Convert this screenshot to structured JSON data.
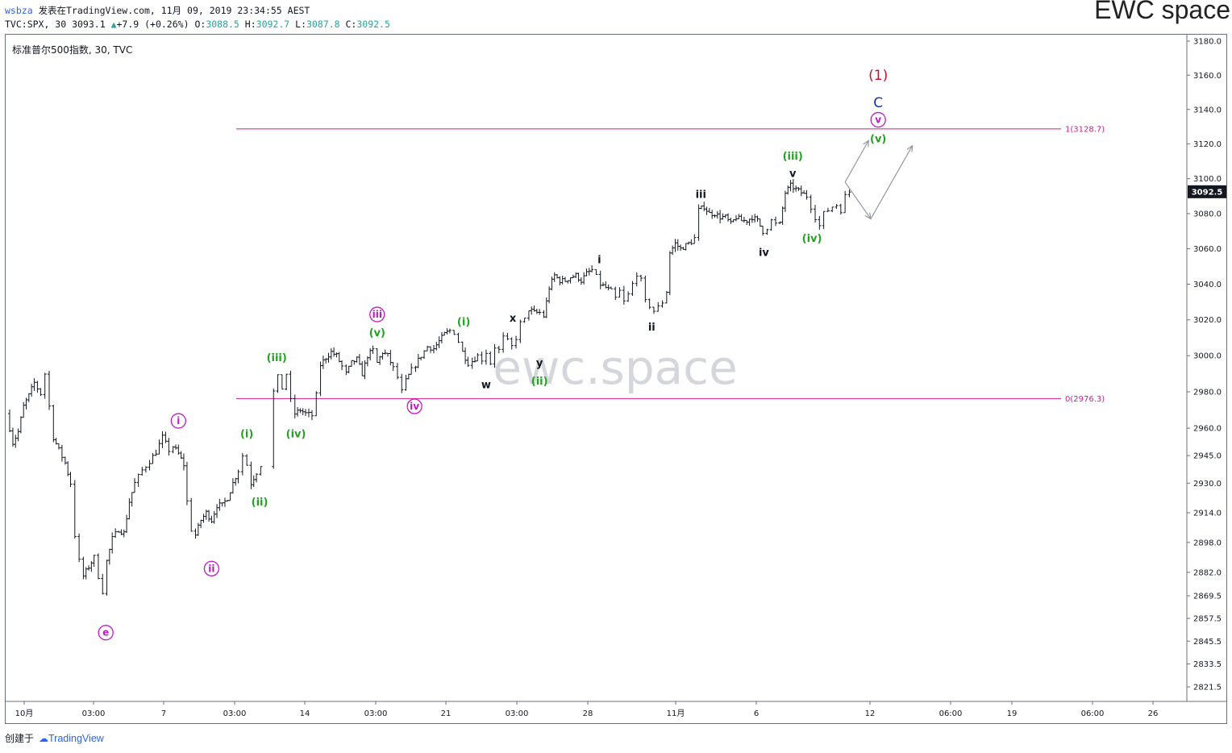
{
  "header": {
    "user": "wsbza",
    "published_text": "发表在TradingView.com, 11月 09, 2019 23:34:55 AEST",
    "symbol_line_prefix": "TVC:SPX, 30 3093.1",
    "change": "+7.9 (+0.26%)",
    "open_label": "O:",
    "open": "3088.5",
    "high_label": "H:",
    "high": "3092.7",
    "low_label": "L:",
    "low": "3087.8",
    "close_label": "C:",
    "close": "3092.5",
    "brand": "EWC space"
  },
  "plot_title": "标准普尔500指数, 30, TVC",
  "watermark": "ewc.space",
  "footer": {
    "created_label": "创建于",
    "platform": "TradingView"
  },
  "colors": {
    "candle": "#131722",
    "fib_line": "#d81b8c",
    "wave_green": "#22a322",
    "wave_magenta": "#c418c4",
    "wave_red": "#c8102e",
    "wave_blue": "#1a2fbf",
    "wave_black": "#131722",
    "arrow": "#9598a1",
    "price_tag_bg": "#131722"
  },
  "chart_data": {
    "type": "candlestick",
    "symbol": "TVC:SPX",
    "interval": "30",
    "last_price": 3092.5,
    "y_axis": {
      "scale": "log",
      "range": [
        2810,
        3185
      ],
      "ticks": [
        3180.0,
        3160.0,
        3140.0,
        3120.0,
        3100.0,
        3080.0,
        3060.0,
        3040.0,
        3020.0,
        3000.0,
        2980.0,
        2960.0,
        2945.0,
        2930.0,
        2914.0,
        2898.0,
        2882.0,
        2869.5,
        2857.5,
        2845.5,
        2833.5,
        2821.5
      ],
      "tick_labels": [
        "3180.0",
        "3160.0",
        "3140.0",
        "3120.0",
        "3100.0",
        "3080.0",
        "3060.0",
        "3040.0",
        "3020.0",
        "3000.0",
        "2980.0",
        "2960.0",
        "2945.0",
        "2930.0",
        "2914.0",
        "2898.0",
        "2882.0",
        "2869.5",
        "2857.5",
        "2845.5",
        "2833.5",
        "2821.5"
      ]
    },
    "x_axis": {
      "ticks": [
        "10月",
        "03:00",
        "7",
        "03:00",
        "14",
        "03:00",
        "21",
        "03:00",
        "28",
        "11月",
        "6",
        "12",
        "06:00",
        "19",
        "06:00",
        "26"
      ]
    },
    "fib_levels": [
      {
        "label": "1(3128.7)",
        "value": 3128.7
      },
      {
        "label": "0(2976.3)",
        "value": 2976.3
      }
    ],
    "price_path": [
      [
        0,
        2968
      ],
      [
        0.6,
        2952
      ],
      [
        1.1,
        2958
      ],
      [
        1.6,
        2972
      ],
      [
        2.1,
        2978
      ],
      [
        2.6,
        2985
      ],
      [
        3.2,
        2979
      ],
      [
        3.6,
        2990
      ],
      [
        4,
        2972
      ],
      [
        4.4,
        2955
      ],
      [
        4.9,
        2948
      ],
      [
        5.5,
        2941
      ],
      [
        6,
        2930
      ],
      [
        6.4,
        2902
      ],
      [
        6.8,
        2888
      ],
      [
        7.2,
        2880
      ],
      [
        7.7,
        2885
      ],
      [
        8.2,
        2890
      ],
      [
        8.6,
        2880
      ],
      [
        9,
        2872
      ],
      [
        9.4,
        2888
      ],
      [
        9.9,
        2900
      ],
      [
        10.5,
        2905
      ],
      [
        11,
        2903
      ],
      [
        11.5,
        2920
      ],
      [
        12,
        2930
      ],
      [
        12.7,
        2937
      ],
      [
        13.4,
        2942
      ],
      [
        14,
        2947
      ],
      [
        14.6,
        2955
      ],
      [
        15.2,
        2948
      ],
      [
        15.6,
        2950
      ],
      [
        16.1,
        2946
      ],
      [
        16.6,
        2940
      ],
      [
        16.9,
        2920
      ],
      [
        17.3,
        2905
      ],
      [
        17.7,
        2902
      ],
      [
        18.2,
        2910
      ],
      [
        18.7,
        2914
      ],
      [
        19.2,
        2910
      ],
      [
        19.7,
        2918
      ],
      [
        20.2,
        2918
      ],
      [
        20.7,
        2922
      ],
      [
        21.2,
        2930
      ],
      [
        21.7,
        2937
      ],
      [
        22.1,
        2945
      ],
      [
        22.5,
        2940
      ],
      [
        22.9,
        2930
      ],
      [
        23.4,
        2936
      ],
      [
        23.8,
        2940
      ],
      [
        24.6,
        2970
      ],
      [
        25,
        2980
      ],
      [
        25.4,
        2988
      ],
      [
        25.8,
        2982
      ],
      [
        26.2,
        2990
      ],
      [
        26.6,
        2975
      ],
      [
        27,
        2968
      ],
      [
        27.5,
        2970
      ],
      [
        28,
        2968
      ],
      [
        28.6,
        2967
      ],
      [
        29,
        2978
      ],
      [
        29.4,
        2995
      ],
      [
        29.9,
        2999
      ],
      [
        30.4,
        3002
      ],
      [
        30.9,
        3000
      ],
      [
        31.4,
        2994
      ],
      [
        31.8,
        2990
      ],
      [
        32.3,
        2996
      ],
      [
        32.8,
        2998
      ],
      [
        33.3,
        2990
      ],
      [
        33.8,
        3000
      ],
      [
        34.3,
        3003
      ],
      [
        34.7,
        2996
      ],
      [
        35.2,
        3002
      ],
      [
        35.7,
        3000
      ],
      [
        36.2,
        2993
      ],
      [
        36.6,
        2988
      ],
      [
        37,
        2980
      ],
      [
        37.4,
        2986
      ],
      [
        37.9,
        2992
      ],
      [
        38.3,
        2995
      ],
      [
        38.8,
        3000
      ],
      [
        39.4,
        3005
      ],
      [
        40,
        3004
      ],
      [
        40.5,
        3008
      ],
      [
        41,
        3012
      ],
      [
        41.5,
        3014
      ],
      [
        41.9,
        3013
      ],
      [
        42.3,
        3008
      ],
      [
        42.7,
        3002
      ],
      [
        43.2,
        2996
      ],
      [
        43.6,
        2997
      ],
      [
        44.1,
        3000
      ],
      [
        44.5,
        2998
      ],
      [
        44.9,
        3002
      ],
      [
        45.3,
        2996
      ],
      [
        45.7,
        3005
      ],
      [
        46.1,
        3003
      ],
      [
        46.5,
        3010
      ],
      [
        46.9,
        3008
      ],
      [
        47.3,
        3005
      ],
      [
        47.7,
        3010
      ],
      [
        48.1,
        3018
      ],
      [
        48.5,
        3020
      ],
      [
        48.9,
        3026
      ],
      [
        49.4,
        3024
      ],
      [
        49.9,
        3024
      ],
      [
        50.3,
        3022
      ],
      [
        50.8,
        3038
      ],
      [
        51.3,
        3045
      ],
      [
        51.8,
        3042
      ],
      [
        52.3,
        3042
      ],
      [
        52.8,
        3044
      ],
      [
        53.3,
        3045
      ],
      [
        53.8,
        3042
      ],
      [
        54.3,
        3046
      ],
      [
        54.8,
        3048
      ],
      [
        55.2,
        3044
      ],
      [
        55.6,
        3040
      ],
      [
        56.1,
        3038
      ],
      [
        56.6,
        3036
      ],
      [
        57,
        3032
      ],
      [
        57.4,
        3036
      ],
      [
        57.8,
        3030
      ],
      [
        58.2,
        3034
      ],
      [
        58.6,
        3040
      ],
      [
        59,
        3046
      ],
      [
        59.4,
        3042
      ],
      [
        59.8,
        3030
      ],
      [
        60.2,
        3028
      ],
      [
        60.6,
        3025
      ],
      [
        61,
        3027
      ],
      [
        61.4,
        3030
      ],
      [
        61.8,
        3036
      ],
      [
        62.1,
        3058
      ],
      [
        62.6,
        3063
      ],
      [
        63.1,
        3060
      ],
      [
        63.6,
        3062
      ],
      [
        64.1,
        3064
      ],
      [
        64.4,
        3066
      ],
      [
        64.8,
        3082
      ],
      [
        65.3,
        3084
      ],
      [
        65.8,
        3080
      ],
      [
        66.3,
        3080
      ],
      [
        66.8,
        3078
      ],
      [
        67.3,
        3078
      ],
      [
        67.8,
        3074
      ],
      [
        68.3,
        3078
      ],
      [
        68.8,
        3076
      ],
      [
        69.3,
        3076
      ],
      [
        69.8,
        3078
      ],
      [
        70.3,
        3076
      ],
      [
        70.8,
        3070
      ],
      [
        71.2,
        3072
      ],
      [
        71.6,
        3076
      ],
      [
        72,
        3074
      ],
      [
        72.4,
        3074
      ],
      [
        72.9,
        3092
      ],
      [
        73.4,
        3096
      ],
      [
        73.9,
        3094
      ],
      [
        74.4,
        3092
      ],
      [
        74.9,
        3090
      ],
      [
        75.3,
        3084
      ],
      [
        75.7,
        3078
      ],
      [
        76.1,
        3073
      ],
      [
        76.5,
        3080
      ],
      [
        76.9,
        3082
      ],
      [
        77.3,
        3084
      ],
      [
        77.7,
        3085
      ],
      [
        78.1,
        3082
      ],
      [
        78.5,
        3090
      ],
      [
        78.9,
        3092.5
      ]
    ],
    "wave_labels": [
      {
        "text": "e",
        "circle": true,
        "color": "magenta",
        "x": 9.3,
        "y": 2850
      },
      {
        "text": "i",
        "circle": true,
        "color": "magenta",
        "x": 16.1,
        "y": 2964
      },
      {
        "text": "ii",
        "circle": true,
        "color": "magenta",
        "x": 19.2,
        "y": 2884
      },
      {
        "text": "(i)",
        "circle": false,
        "color": "green",
        "x": 22.5,
        "y": 2957
      },
      {
        "text": "(ii)",
        "circle": false,
        "color": "green",
        "x": 23.7,
        "y": 2920
      },
      {
        "text": "(iii)",
        "circle": false,
        "color": "green",
        "x": 25.3,
        "y": 2999
      },
      {
        "text": "(iv)",
        "circle": false,
        "color": "green",
        "x": 27.1,
        "y": 2957
      },
      {
        "text": "iii",
        "circle": true,
        "color": "magenta",
        "x": 34.7,
        "y": 3023
      },
      {
        "text": "(v)",
        "circle": false,
        "color": "green",
        "x": 34.7,
        "y": 3013
      },
      {
        "text": "iv",
        "circle": true,
        "color": "magenta",
        "x": 38.2,
        "y": 2972
      },
      {
        "text": "(i)",
        "circle": false,
        "color": "green",
        "x": 42.8,
        "y": 3019
      },
      {
        "text": "x",
        "circle": false,
        "color": "black",
        "x": 47.4,
        "y": 3021
      },
      {
        "text": "w",
        "circle": false,
        "color": "black",
        "x": 44.9,
        "y": 2984
      },
      {
        "text": "y",
        "circle": false,
        "color": "black",
        "x": 49.9,
        "y": 2996
      },
      {
        "text": "(ii)",
        "circle": false,
        "color": "green",
        "x": 49.9,
        "y": 2986
      },
      {
        "text": "i",
        "circle": false,
        "color": "black",
        "x": 55.5,
        "y": 3054
      },
      {
        "text": "ii",
        "circle": false,
        "color": "black",
        "x": 60.4,
        "y": 3016
      },
      {
        "text": "iii",
        "circle": false,
        "color": "black",
        "x": 65,
        "y": 3091
      },
      {
        "text": "iv",
        "circle": false,
        "color": "black",
        "x": 70.9,
        "y": 3058
      },
      {
        "text": "(iii)",
        "circle": false,
        "color": "green",
        "x": 73.6,
        "y": 3113
      },
      {
        "text": "v",
        "circle": false,
        "color": "black",
        "x": 73.6,
        "y": 3103
      },
      {
        "text": "(iv)",
        "circle": false,
        "color": "green",
        "x": 75.4,
        "y": 3066
      },
      {
        "text": "(1)",
        "circle": false,
        "color": "red",
        "x": 81.6,
        "y": 3160
      },
      {
        "text": "C",
        "circle": false,
        "color": "blue",
        "x": 81.6,
        "y": 3144
      },
      {
        "text": "v",
        "circle": true,
        "color": "magenta",
        "x": 81.6,
        "y": 3134
      },
      {
        "text": "(v)",
        "circle": false,
        "color": "green",
        "x": 81.6,
        "y": 3123
      }
    ],
    "projection_arrows": [
      [
        [
          78.5,
          3098
        ],
        [
          80.7,
          3122
        ]
      ],
      [
        [
          78.5,
          3098
        ],
        [
          80.9,
          3077
        ]
      ],
      [
        [
          80.9,
          3077
        ],
        [
          84.8,
          3119
        ]
      ]
    ]
  }
}
